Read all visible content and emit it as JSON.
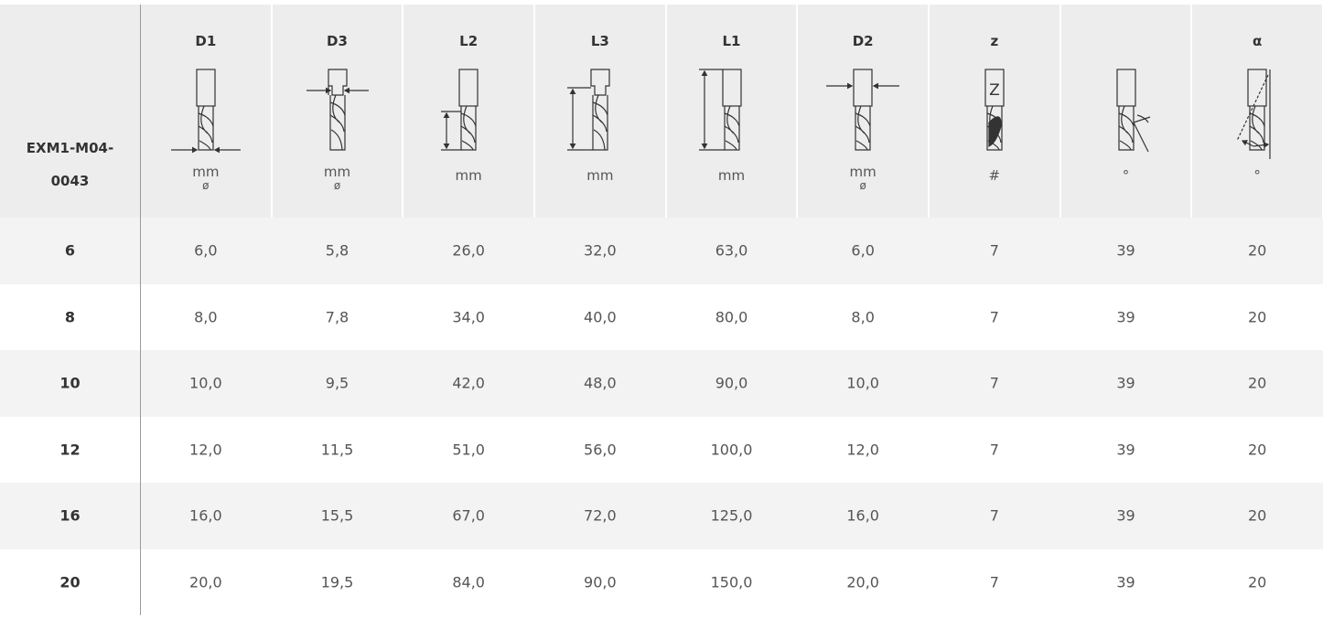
{
  "table": {
    "corner": [
      "EXM1-M04-",
      "0043"
    ],
    "columns": [
      {
        "label": "D1",
        "unit": "mm",
        "sub": "ø"
      },
      {
        "label": "D3",
        "unit": "mm",
        "sub": "ø"
      },
      {
        "label": "L2",
        "unit": "mm"
      },
      {
        "label": "L3",
        "unit": "mm"
      },
      {
        "label": "L1",
        "unit": "mm"
      },
      {
        "label": "D2",
        "unit": "mm",
        "sub": "ø"
      },
      {
        "label": "z",
        "unit": "#",
        "icon_label": "Z"
      },
      {
        "unit": "°"
      },
      {
        "label": "α",
        "unit": "°"
      }
    ],
    "rows": [
      {
        "key": "6",
        "cells": [
          "6,0",
          "5,8",
          "26,0",
          "32,0",
          "63,0",
          "6,0",
          "7",
          "39",
          "20"
        ]
      },
      {
        "key": "8",
        "cells": [
          "8,0",
          "7,8",
          "34,0",
          "40,0",
          "80,0",
          "8,0",
          "7",
          "39",
          "20"
        ]
      },
      {
        "key": "10",
        "cells": [
          "10,0",
          "9,5",
          "42,0",
          "48,0",
          "90,0",
          "10,0",
          "7",
          "39",
          "20"
        ]
      },
      {
        "key": "12",
        "cells": [
          "12,0",
          "11,5",
          "51,0",
          "56,0",
          "100,0",
          "12,0",
          "7",
          "39",
          "20"
        ]
      },
      {
        "key": "16",
        "cells": [
          "16,0",
          "15,5",
          "67,0",
          "72,0",
          "125,0",
          "16,0",
          "7",
          "39",
          "20"
        ]
      },
      {
        "key": "20",
        "cells": [
          "20,0",
          "19,5",
          "84,0",
          "90,0",
          "150,0",
          "20,0",
          "7",
          "39",
          "20"
        ]
      }
    ]
  }
}
